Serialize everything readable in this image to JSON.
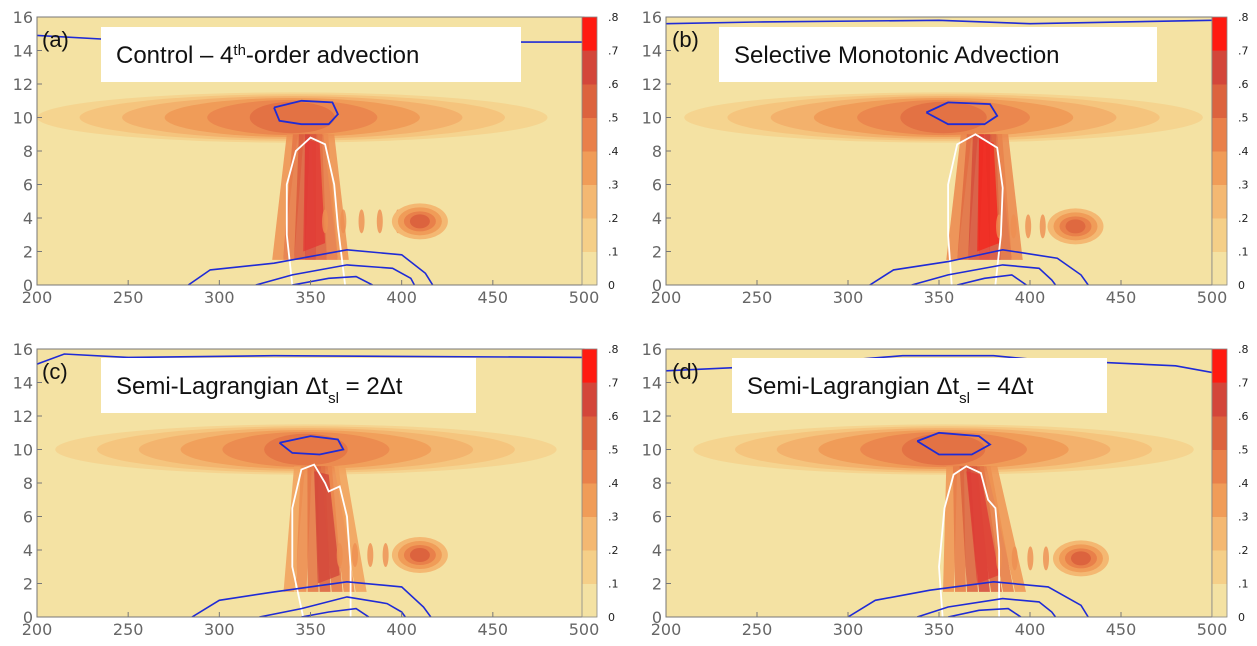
{
  "chart_data": {
    "type": "heatmap",
    "x_ticks": [
      "200",
      "250",
      "300",
      "350",
      "400",
      "450",
      "500"
    ],
    "y_ticks": [
      "0",
      "2",
      "4",
      "6",
      "8",
      "10",
      "12",
      "14",
      "16"
    ],
    "xlim": [
      200,
      500
    ],
    "ylim": [
      0,
      16
    ],
    "colorbar": {
      "ticks": [
        "0",
        ".1",
        ".2",
        ".3",
        ".4",
        ".5",
        ".6",
        ".7",
        ".8"
      ],
      "range": [
        0,
        0.8
      ],
      "colors": [
        "#f4e2a3",
        "#f5cf88",
        "#f4b872",
        "#f09c58",
        "#e9804a",
        "#dc633e",
        "#d3463a",
        "#e23a34",
        "#ff1a10"
      ]
    },
    "contour_colors": {
      "blue": "#1f2bd6",
      "white": "#ffffff"
    },
    "panels": [
      {
        "letter": "(a)",
        "title_pre": "Control – 4",
        "title_sup": "th",
        "title_post": "-order advection",
        "anvil": {
          "x0": 200,
          "x1": 480,
          "yc": 10.0,
          "half_height": 1.5,
          "peak": 0.45
        },
        "updraft": {
          "x_base": 350,
          "x_top": 350,
          "half_width": 20,
          "y_top": 9,
          "peak": 0.62
        },
        "blob": {
          "x": 410,
          "y": 3.8,
          "peak": 0.5
        },
        "white_contour": [
          [
            340,
            0
          ],
          [
            337,
            3
          ],
          [
            337,
            6
          ],
          [
            342,
            8.0
          ],
          [
            350,
            8.8
          ],
          [
            358,
            8.4
          ],
          [
            363,
            6.0
          ],
          [
            365,
            3.5
          ],
          [
            369,
            0
          ]
        ],
        "blue_top": [
          [
            330,
            10.6
          ],
          [
            345,
            11.0
          ],
          [
            362,
            10.9
          ],
          [
            365,
            10.2
          ],
          [
            360,
            9.6
          ],
          [
            345,
            9.6
          ],
          [
            333,
            9.8
          ],
          [
            330,
            10.6
          ]
        ],
        "blue_surface": [
          [
            [
              283,
              0
            ],
            [
              295,
              0.9
            ],
            [
              330,
              1.3
            ],
            [
              370,
              2.1
            ],
            [
              400,
              1.8
            ],
            [
              413,
              0.7
            ],
            [
              417,
              0
            ]
          ],
          [
            [
              320,
              0
            ],
            [
              340,
              0.6
            ],
            [
              370,
              1.2
            ],
            [
              395,
              1.0
            ],
            [
              405,
              0.4
            ],
            [
              407,
              0
            ]
          ],
          [
            [
              340,
              0
            ],
            [
              360,
              0.4
            ],
            [
              375,
              0.5
            ],
            [
              384,
              0
            ]
          ]
        ],
        "blue_top_edge": [
          [
            200,
            14.9
          ],
          [
            250,
            14.6
          ],
          [
            350,
            14.5
          ],
          [
            500,
            14.5
          ]
        ]
      },
      {
        "letter": "(b)",
        "title_pre": "Selective Monotonic Advection",
        "title_sup": "",
        "title_post": "",
        "anvil": {
          "x0": 210,
          "x1": 495,
          "yc": 10.0,
          "half_height": 1.5,
          "peak": 0.45
        },
        "updraft": {
          "x_base": 375,
          "x_top": 375,
          "half_width": 20,
          "y_top": 9,
          "peak": 0.68
        },
        "blob": {
          "x": 425,
          "y": 3.5,
          "peak": 0.48
        },
        "white_contour": [
          [
            357,
            0
          ],
          [
            355,
            3
          ],
          [
            355,
            6
          ],
          [
            360,
            8.4
          ],
          [
            370,
            9.0
          ],
          [
            382,
            8.2
          ],
          [
            385,
            5.8
          ],
          [
            384,
            3.0
          ],
          [
            381,
            0
          ]
        ],
        "blue_top": [
          [
            343,
            10.3
          ],
          [
            355,
            10.9
          ],
          [
            378,
            10.8
          ],
          [
            382,
            10.1
          ],
          [
            375,
            9.6
          ],
          [
            355,
            9.6
          ],
          [
            343,
            10.3
          ]
        ],
        "blue_surface": [
          [
            [
              312,
              0
            ],
            [
              325,
              0.9
            ],
            [
              355,
              1.4
            ],
            [
              385,
              2.1
            ],
            [
              415,
              1.6
            ],
            [
              428,
              0.6
            ],
            [
              432,
              0
            ]
          ],
          [
            [
              335,
              0
            ],
            [
              355,
              0.6
            ],
            [
              385,
              1.2
            ],
            [
              405,
              1.0
            ],
            [
              412,
              0.3
            ],
            [
              414,
              0
            ]
          ],
          [
            [
              360,
              0
            ],
            [
              375,
              0.4
            ],
            [
              390,
              0.6
            ],
            [
              398,
              0
            ]
          ]
        ],
        "blue_top_edge": [
          [
            200,
            15.6
          ],
          [
            250,
            15.7
          ],
          [
            350,
            15.8
          ],
          [
            400,
            15.6
          ],
          [
            500,
            15.8
          ]
        ]
      },
      {
        "letter": "(c)",
        "title_pre": "Semi-Lagrangian Δt",
        "title_sup": "",
        "title_sub": "sl",
        "title_post": " = 2Δt",
        "anvil": {
          "x0": 210,
          "x1": 485,
          "yc": 10.0,
          "half_height": 1.5,
          "peak": 0.43
        },
        "updraft": {
          "x_base": 358,
          "x_top": 355,
          "half_width": 22,
          "y_top": 9,
          "peak": 0.52
        },
        "blob": {
          "x": 410,
          "y": 3.7,
          "peak": 0.5
        },
        "white_contour": [
          [
            346,
            0
          ],
          [
            340,
            3
          ],
          [
            340,
            6.5
          ],
          [
            345,
            8.8
          ],
          [
            352,
            9.1
          ],
          [
            358,
            8.0
          ],
          [
            360,
            7.5
          ],
          [
            366,
            7.8
          ],
          [
            370,
            6.0
          ],
          [
            372,
            3.0
          ],
          [
            372,
            0
          ]
        ],
        "blue_top": [
          [
            333,
            10.4
          ],
          [
            350,
            10.8
          ],
          [
            365,
            10.6
          ],
          [
            368,
            10.0
          ],
          [
            355,
            9.7
          ],
          [
            340,
            9.8
          ],
          [
            333,
            10.4
          ]
        ],
        "blue_surface": [
          [
            [
              285,
              0
            ],
            [
              300,
              1.0
            ],
            [
              330,
              1.5
            ],
            [
              370,
              2.1
            ],
            [
              400,
              1.8
            ],
            [
              412,
              0.6
            ],
            [
              416,
              0
            ]
          ],
          [
            [
              322,
              0
            ],
            [
              345,
              0.5
            ],
            [
              370,
              1.2
            ],
            [
              392,
              0.8
            ],
            [
              400,
              0.3
            ],
            [
              402,
              0
            ]
          ],
          [
            [
              345,
              0
            ],
            [
              360,
              0.3
            ],
            [
              375,
              0.5
            ],
            [
              382,
              0
            ]
          ]
        ],
        "blue_top_edge": [
          [
            200,
            15.1
          ],
          [
            215,
            15.7
          ],
          [
            250,
            15.5
          ],
          [
            330,
            15.6
          ],
          [
            500,
            15.5
          ]
        ]
      },
      {
        "letter": "(d)",
        "title_pre": "Semi-Lagrangian Δt",
        "title_sup": "",
        "title_sub": "sl",
        "title_post": " = 4Δt",
        "anvil": {
          "x0": 215,
          "x1": 490,
          "yc": 10.0,
          "half_height": 1.5,
          "peak": 0.45
        },
        "updraft": {
          "x_base": 375,
          "x_top": 368,
          "half_width": 22,
          "y_top": 9,
          "peak": 0.6
        },
        "blob": {
          "x": 428,
          "y": 3.5,
          "peak": 0.5
        },
        "white_contour": [
          [
            352,
            0
          ],
          [
            350,
            3
          ],
          [
            353,
            6.5
          ],
          [
            358,
            8.5
          ],
          [
            365,
            9.0
          ],
          [
            373,
            8.6
          ],
          [
            377,
            7.0
          ],
          [
            381,
            6.5
          ],
          [
            383,
            4.0
          ],
          [
            383,
            0
          ]
        ],
        "blue_top": [
          [
            338,
            10.5
          ],
          [
            350,
            11.0
          ],
          [
            372,
            10.8
          ],
          [
            378,
            10.3
          ],
          [
            368,
            9.7
          ],
          [
            350,
            9.7
          ],
          [
            338,
            10.5
          ]
        ],
        "blue_surface": [
          [
            [
              300,
              0
            ],
            [
              315,
              1.0
            ],
            [
              345,
              1.6
            ],
            [
              380,
              2.1
            ],
            [
              410,
              1.8
            ],
            [
              428,
              0.7
            ],
            [
              432,
              0
            ]
          ],
          [
            [
              338,
              0
            ],
            [
              355,
              0.6
            ],
            [
              385,
              1.1
            ],
            [
              405,
              0.9
            ],
            [
              412,
              0.3
            ],
            [
              414,
              0
            ]
          ],
          [
            [
              355,
              0
            ],
            [
              372,
              0.4
            ],
            [
              388,
              0.5
            ],
            [
              395,
              0
            ]
          ]
        ],
        "blue_top_edge": [
          [
            200,
            14.7
          ],
          [
            260,
            15.0
          ],
          [
            330,
            15.6
          ],
          [
            380,
            15.6
          ],
          [
            400,
            15.4
          ],
          [
            480,
            15.0
          ],
          [
            500,
            14.6
          ]
        ]
      }
    ]
  }
}
